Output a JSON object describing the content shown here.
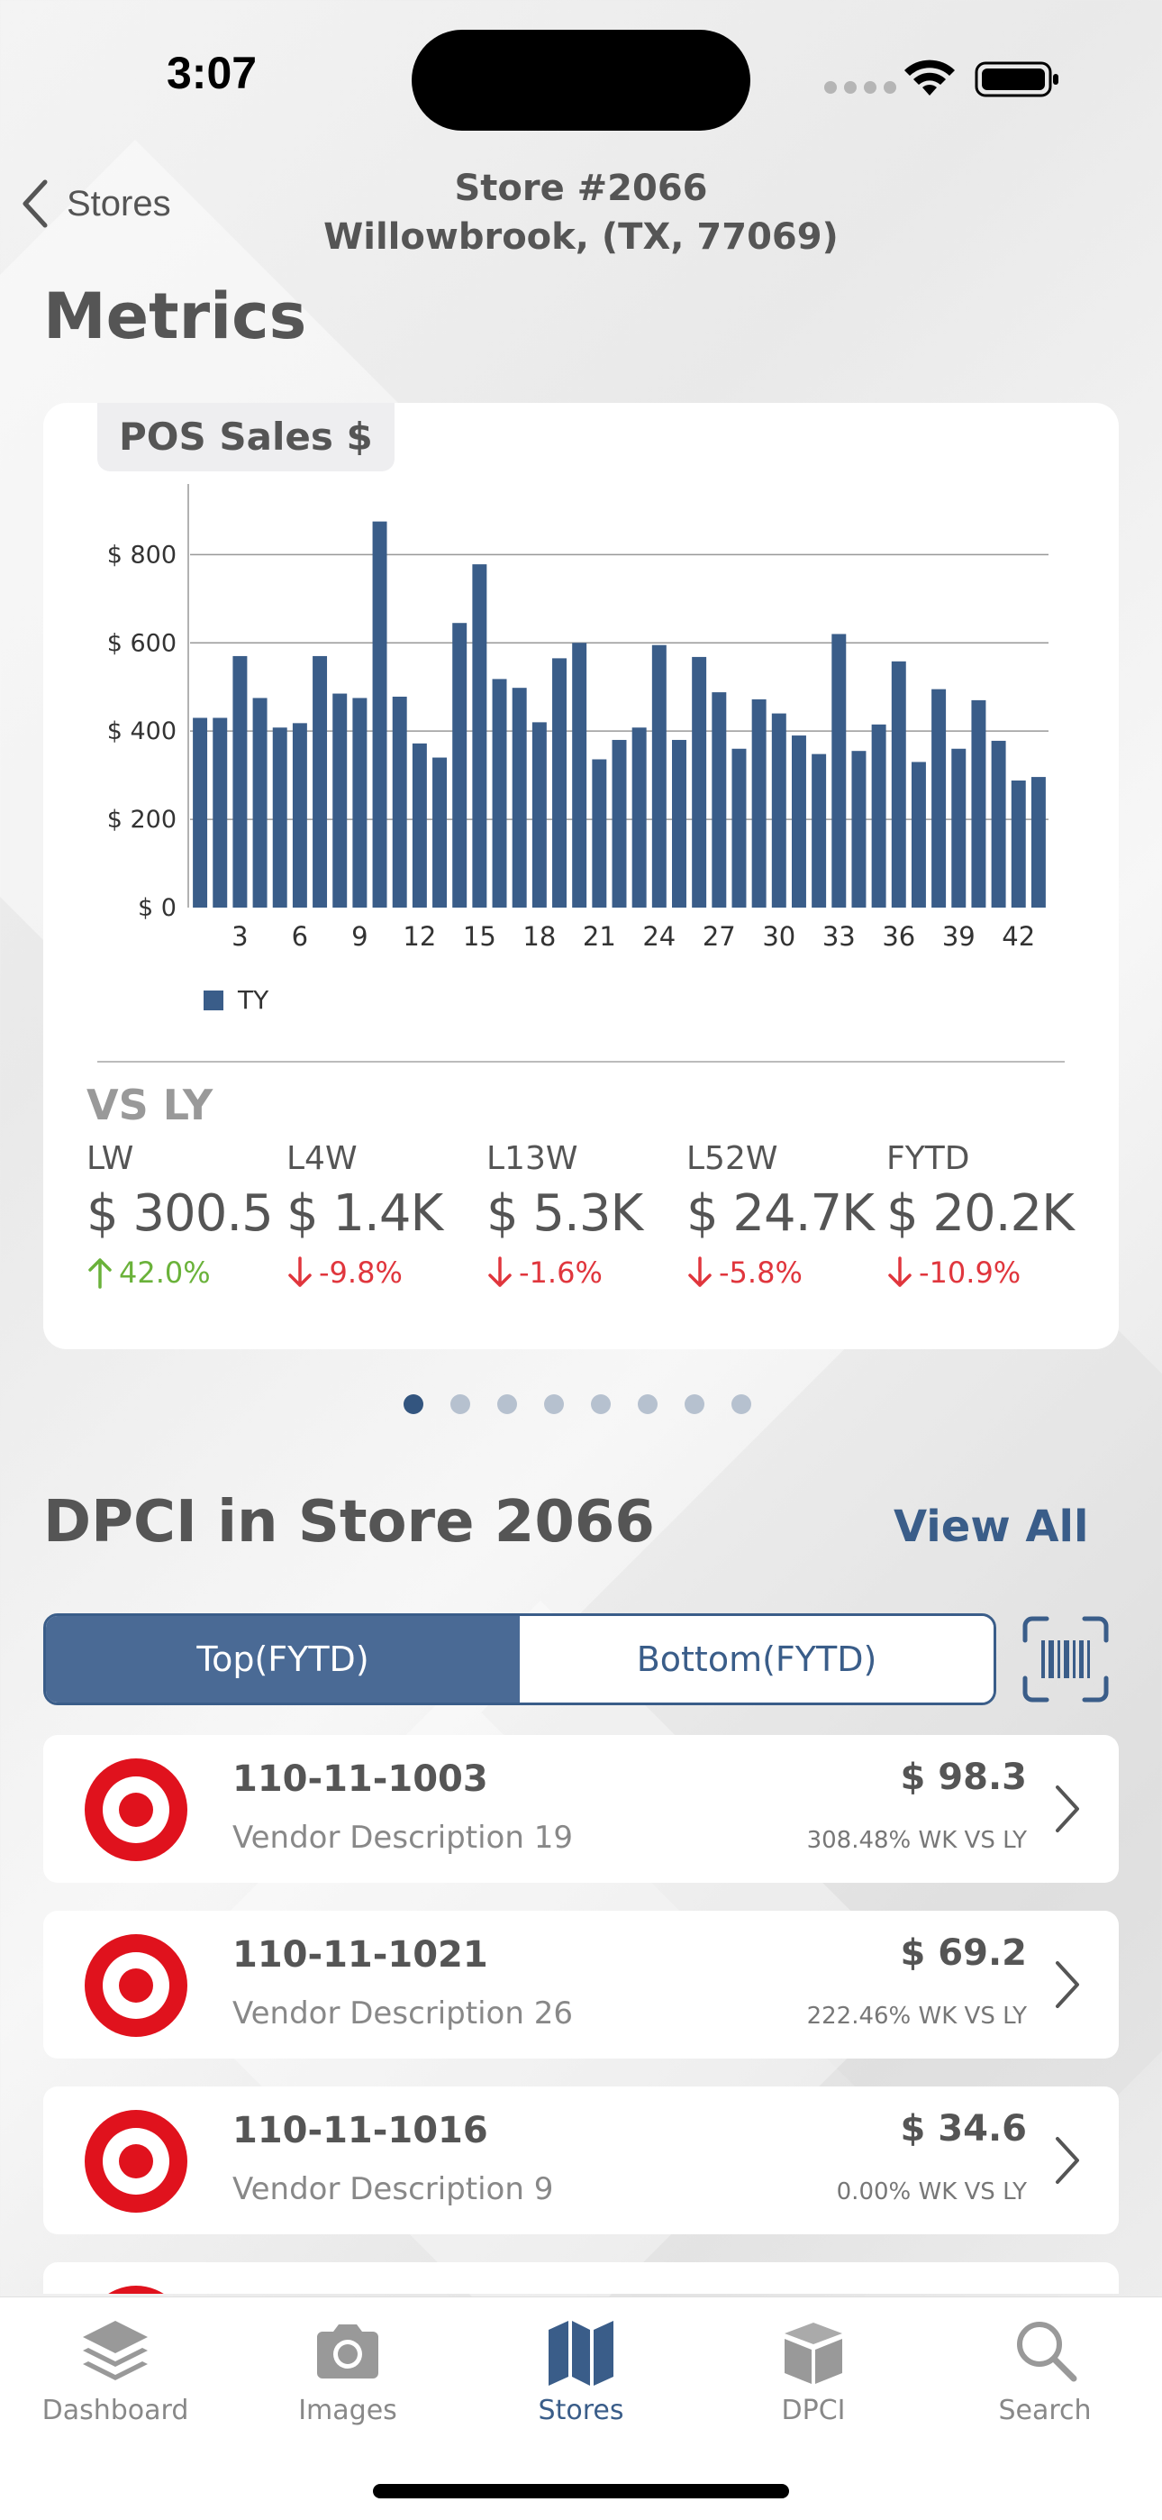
{
  "status_bar": {
    "time": "3:07"
  },
  "nav": {
    "back_label": "Stores",
    "title_line1": "Store #2066",
    "title_line2": "Willowbrook, (TX, 77069)"
  },
  "metrics": {
    "section_title": "Metrics",
    "chart_tag": "POS Sales $",
    "legend_label": "TY",
    "vs_title": "VS LY",
    "kpis": [
      {
        "label": "LW",
        "value": "$ 300.5",
        "change": "42.0%",
        "direction": "up"
      },
      {
        "label": "L4W",
        "value": "$ 1.4K",
        "change": "-9.8%",
        "direction": "down"
      },
      {
        "label": "L13W",
        "value": "$ 5.3K",
        "change": "-1.6%",
        "direction": "down"
      },
      {
        "label": "L52W",
        "value": "$ 24.7K",
        "change": "-5.8%",
        "direction": "down"
      },
      {
        "label": "FYTD",
        "value": "$ 20.2K",
        "change": "-10.9%",
        "direction": "down"
      }
    ],
    "page_count": 8,
    "active_page": 0
  },
  "chart_data": {
    "type": "bar",
    "x": [
      1,
      2,
      3,
      4,
      5,
      6,
      7,
      8,
      9,
      10,
      11,
      12,
      13,
      14,
      15,
      16,
      17,
      18,
      19,
      20,
      21,
      22,
      23,
      24,
      25,
      26,
      27,
      28,
      29,
      30,
      31,
      32,
      33,
      34,
      35,
      36,
      37,
      38,
      39,
      40,
      41,
      42,
      43
    ],
    "series": [
      {
        "name": "TY",
        "values": [
          430,
          430,
          570,
          475,
          408,
          418,
          570,
          485,
          475,
          875,
          478,
          372,
          340,
          645,
          778,
          518,
          498,
          420,
          565,
          600,
          336,
          380,
          408,
          595,
          380,
          568,
          488,
          360,
          472,
          440,
          390,
          348,
          620,
          355,
          415,
          558,
          330,
          495,
          360,
          470,
          378,
          288,
          296
        ]
      }
    ],
    "xticks": [
      "3",
      "6",
      "9",
      "12",
      "15",
      "18",
      "21",
      "24",
      "27",
      "30",
      "33",
      "36",
      "39",
      "42"
    ],
    "yticks": [
      "$ 0",
      "$ 200",
      "$ 400",
      "$ 600",
      "$ 800"
    ],
    "ylim": [
      0,
      960
    ],
    "grid": true,
    "legend": "bottom-left",
    "color": "#3a5d89"
  },
  "dpci": {
    "title": "DPCI in Store 2066",
    "view_all": "View All",
    "tabs": [
      "Top(FYTD)",
      "Bottom(FYTD)"
    ],
    "active_tab": 0,
    "items": [
      {
        "id": "110-11-1003",
        "desc": "Vendor Description 19",
        "amount": "$ 98.3",
        "pct": "308.48% WK VS LY"
      },
      {
        "id": "110-11-1021",
        "desc": "Vendor Description 26",
        "amount": "$ 69.2",
        "pct": "222.46% WK VS LY"
      },
      {
        "id": "110-11-1016",
        "desc": "Vendor Description 9",
        "amount": "$ 34.6",
        "pct": "0.00% WK VS LY"
      },
      {
        "id": "",
        "desc": "",
        "amount": "",
        "pct": ""
      }
    ]
  },
  "tab_bar": {
    "items": [
      {
        "label": "Dashboard",
        "icon": "layers-icon"
      },
      {
        "label": "Images",
        "icon": "camera-icon"
      },
      {
        "label": "Stores",
        "icon": "map-icon"
      },
      {
        "label": "DPCI",
        "icon": "box-icon"
      },
      {
        "label": "Search",
        "icon": "search-icon"
      }
    ],
    "active": 2
  },
  "colors": {
    "accent": "#3a5d89",
    "up": "#6ab23a",
    "down": "#e0363d",
    "brand_red": "#e0121d"
  }
}
